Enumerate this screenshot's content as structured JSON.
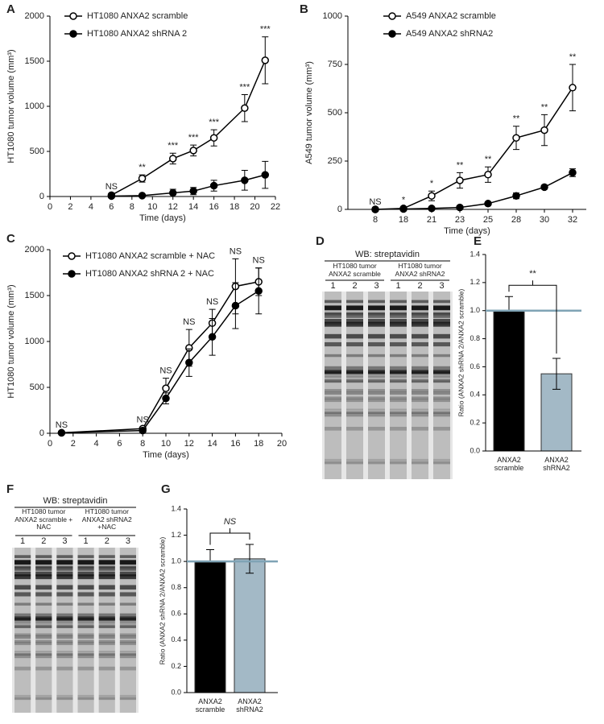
{
  "chart_data": [
    {
      "type": "line",
      "panel": "A",
      "xlabel": "Time (days)",
      "ylabel": "HT1080 tumor volume (mm³)",
      "x": [
        6,
        9,
        12,
        14,
        16,
        19,
        21
      ],
      "xlim": [
        0,
        22
      ],
      "xticks": [
        0,
        2,
        4,
        6,
        8,
        10,
        12,
        14,
        16,
        18,
        20,
        22
      ],
      "ylim": [
        0,
        2000
      ],
      "yticks": [
        0,
        500,
        1000,
        1500,
        2000
      ],
      "legend": "upper left",
      "series": [
        {
          "name": "HT1080 ANXA2 scramble",
          "color": "#000000",
          "marker_fill": "#ffffff",
          "values": [
            15,
            200,
            420,
            510,
            650,
            980,
            1510
          ],
          "errors": [
            10,
            40,
            60,
            60,
            90,
            150,
            260
          ]
        },
        {
          "name": "HT1080 ANXA2 shRNA 2",
          "color": "#000000",
          "marker_fill": "#000000",
          "values": [
            5,
            10,
            40,
            60,
            120,
            180,
            240
          ],
          "errors": [
            3,
            10,
            40,
            40,
            60,
            110,
            150
          ]
        }
      ],
      "annotations": [
        "NS",
        "**",
        "***",
        "***",
        "***",
        "***",
        "***"
      ]
    },
    {
      "type": "line",
      "panel": "B",
      "xlabel": "Time (days)",
      "ylabel": "A549 tumor volume (mm³)",
      "categories": [
        "8",
        "18",
        "21",
        "23",
        "25",
        "28",
        "30",
        "32"
      ],
      "ylim": [
        0,
        1000
      ],
      "yticks": [
        0,
        250,
        500,
        750,
        1000
      ],
      "legend": "upper left",
      "series": [
        {
          "name": "A549 ANXA2 scramble",
          "color": "#000000",
          "marker_fill": "#ffffff",
          "values": [
            0,
            5,
            70,
            150,
            180,
            370,
            410,
            630
          ],
          "errors": [
            0,
            5,
            25,
            40,
            40,
            60,
            80,
            120
          ]
        },
        {
          "name": "A549 ANXA2 shRNA2",
          "color": "#000000",
          "marker_fill": "#000000",
          "values": [
            0,
            2,
            5,
            10,
            30,
            70,
            115,
            190
          ],
          "errors": [
            0,
            1,
            3,
            5,
            8,
            15,
            10,
            20
          ]
        }
      ],
      "annotations": [
        "NS",
        "*",
        "*",
        "**",
        "**",
        "**",
        "**",
        "**"
      ]
    },
    {
      "type": "line",
      "panel": "C",
      "xlabel": "Time (days)",
      "ylabel": "HT1080 tumor volume (mm³)",
      "x": [
        1,
        8,
        10,
        12,
        14,
        16,
        18
      ],
      "xlim": [
        0,
        20
      ],
      "xticks": [
        0,
        2,
        4,
        6,
        8,
        10,
        12,
        14,
        16,
        18,
        20
      ],
      "ylim": [
        0,
        2000
      ],
      "yticks": [
        0,
        500,
        1000,
        1500,
        2000
      ],
      "legend": "upper left",
      "series": [
        {
          "name": "HT1080 ANXA2 scramble + NAC",
          "color": "#000000",
          "marker_fill": "#ffffff",
          "values": [
            5,
            50,
            490,
            930,
            1200,
            1600,
            1650
          ],
          "errors": [
            5,
            15,
            110,
            200,
            150,
            300,
            150
          ]
        },
        {
          "name": "HT1080 ANXA2 shRNA 2 + NAC",
          "color": "#000000",
          "marker_fill": "#000000",
          "values": [
            5,
            30,
            380,
            770,
            1050,
            1390,
            1550
          ],
          "errors": [
            5,
            10,
            60,
            150,
            200,
            250,
            250
          ]
        }
      ],
      "annotations": [
        "NS",
        "NS",
        "NS",
        "NS",
        "NS",
        "NS",
        "NS"
      ]
    },
    {
      "type": "blot",
      "panel": "D",
      "title": "WB: streptavidin",
      "groups": [
        {
          "label": "HT1080 tumor ANXA2 scramble",
          "lanes": [
            "1",
            "2",
            "3"
          ]
        },
        {
          "label": "HT1080 tumor ANXA2 shRNA2",
          "lanes": [
            "1",
            "2",
            "3"
          ]
        }
      ]
    },
    {
      "type": "bar",
      "panel": "E",
      "ylabel": "Ratio (ANXA2 shRNA 2/ANXA2 scramble)",
      "categories": [
        "ANXA2 scramble",
        "ANXA2 shRNA2"
      ],
      "values": [
        1.0,
        0.55
      ],
      "errors": [
        0.1,
        0.11
      ],
      "colors": [
        "#000000",
        "#a3b9c6"
      ],
      "ylim": [
        0,
        1.4
      ],
      "yticks": [
        {
          "value": 0,
          "label": "0.0"
        },
        0.2,
        0.4,
        0.6,
        0.8,
        {
          "value": 1,
          "label": "1.0"
        },
        1.2,
        1.4
      ],
      "reference_line": {
        "value": 1,
        "color": "#7fa3b5"
      },
      "annotation": "**"
    },
    {
      "type": "blot",
      "panel": "F",
      "title": "WB: streptavidin",
      "groups": [
        {
          "label": "HT1080 tumor ANXA2 scramble + NAC",
          "lanes": [
            "1",
            "2",
            "3"
          ]
        },
        {
          "label": "HT1080 tumor ANXA2 shRNA2 +NAC",
          "lanes": [
            "1",
            "2",
            "3"
          ]
        }
      ]
    },
    {
      "type": "bar",
      "panel": "G",
      "ylabel": "Ratio (ANXA2 shRNA 2/ANXA2 scramble)",
      "categories": [
        "ANXA2 scramble",
        "ANXA2 shRNA2"
      ],
      "values": [
        1.0,
        1.02
      ],
      "errors": [
        0.09,
        0.11
      ],
      "colors": [
        "#000000",
        "#a3b9c6"
      ],
      "ylim": [
        0,
        1.4
      ],
      "yticks": [
        {
          "value": 0,
          "label": "0.0"
        },
        0.2,
        0.4,
        0.6,
        0.8,
        {
          "value": 1,
          "label": "1.0"
        },
        1.2,
        1.4
      ],
      "reference_line": {
        "value": 1,
        "color": "#7fa3b5"
      },
      "annotation": "NS"
    }
  ]
}
